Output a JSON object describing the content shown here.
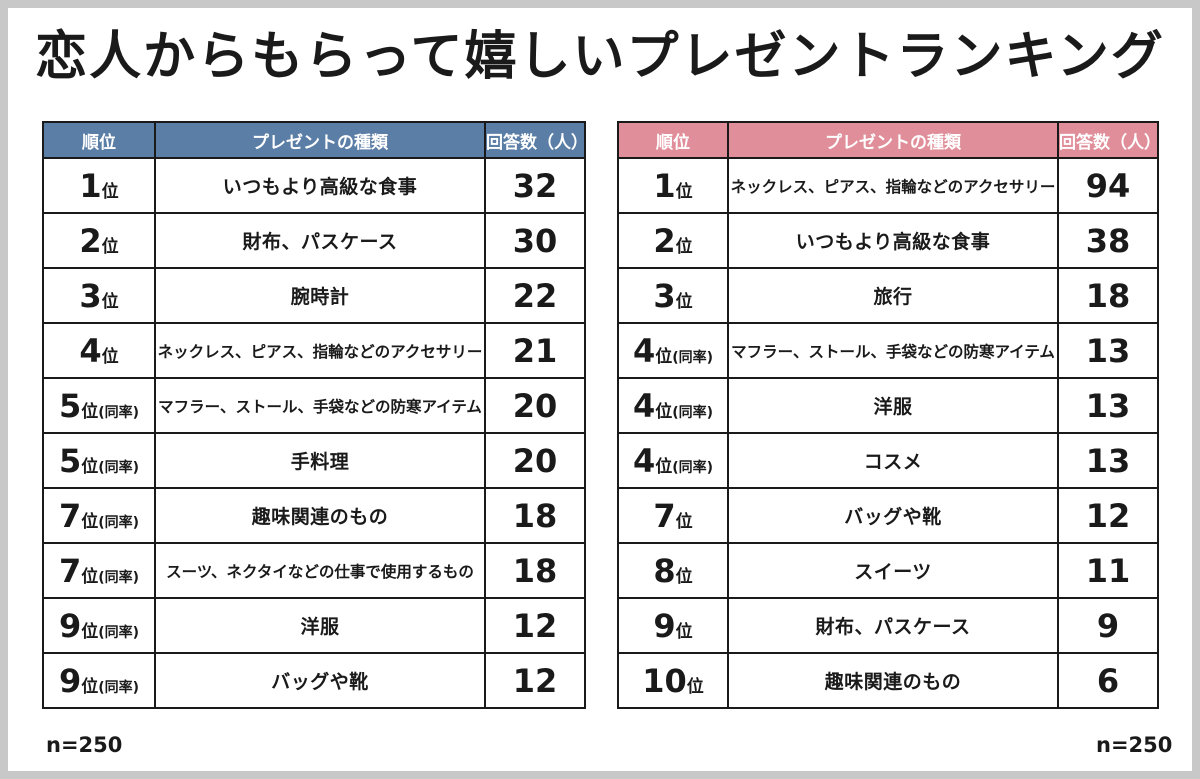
{
  "title": "恋人からもらって嬉しいプレゼントランキング",
  "left_table": {
    "headers": {
      "rank": "順位",
      "present": "プレゼントの種類",
      "count": "回答数（人）"
    },
    "accent_color": "#5b7ea6",
    "rows": [
      {
        "rank": "1",
        "suffix": "位",
        "tie": "",
        "present": "いつもより高級な食事",
        "count": "32"
      },
      {
        "rank": "2",
        "suffix": "位",
        "tie": "",
        "present": "財布、パスケース",
        "count": "30"
      },
      {
        "rank": "3",
        "suffix": "位",
        "tie": "",
        "present": "腕時計",
        "count": "22"
      },
      {
        "rank": "4",
        "suffix": "位",
        "tie": "",
        "present": "ネックレス、ピアス、指輪などのアクセサリー",
        "count": "21"
      },
      {
        "rank": "5",
        "suffix": "位",
        "tie": "(同率)",
        "present": "マフラー、ストール、手袋などの防寒アイテム",
        "count": "20"
      },
      {
        "rank": "5",
        "suffix": "位",
        "tie": "(同率)",
        "present": "手料理",
        "count": "20"
      },
      {
        "rank": "7",
        "suffix": "位",
        "tie": "(同率)",
        "present": "趣味関連のもの",
        "count": "18"
      },
      {
        "rank": "7",
        "suffix": "位",
        "tie": "(同率)",
        "present": "スーツ、ネクタイなどの仕事で使用するもの",
        "count": "18"
      },
      {
        "rank": "9",
        "suffix": "位",
        "tie": "(同率)",
        "present": "洋服",
        "count": "12"
      },
      {
        "rank": "9",
        "suffix": "位",
        "tie": "(同率)",
        "present": "バッグや靴",
        "count": "12"
      }
    ],
    "note": "n=250"
  },
  "right_table": {
    "headers": {
      "rank": "順位",
      "present": "プレゼントの種類",
      "count": "回答数（人）"
    },
    "accent_color": "#e08f9a",
    "rows": [
      {
        "rank": "1",
        "suffix": "位",
        "tie": "",
        "present": "ネックレス、ピアス、指輪などのアクセサリー",
        "count": "94"
      },
      {
        "rank": "2",
        "suffix": "位",
        "tie": "",
        "present": "いつもより高級な食事",
        "count": "38"
      },
      {
        "rank": "3",
        "suffix": "位",
        "tie": "",
        "present": "旅行",
        "count": "18"
      },
      {
        "rank": "4",
        "suffix": "位",
        "tie": "(同率)",
        "present": "マフラー、ストール、手袋などの防寒アイテム",
        "count": "13"
      },
      {
        "rank": "4",
        "suffix": "位",
        "tie": "(同率)",
        "present": "洋服",
        "count": "13"
      },
      {
        "rank": "4",
        "suffix": "位",
        "tie": "(同率)",
        "present": "コスメ",
        "count": "13"
      },
      {
        "rank": "7",
        "suffix": "位",
        "tie": "",
        "present": "バッグや靴",
        "count": "12"
      },
      {
        "rank": "8",
        "suffix": "位",
        "tie": "",
        "present": "スイーツ",
        "count": "11"
      },
      {
        "rank": "9",
        "suffix": "位",
        "tie": "",
        "present": "財布、パスケース",
        "count": "9"
      },
      {
        "rank": "10",
        "suffix": "位",
        "tie": "",
        "present": "趣味関連のもの",
        "count": "6"
      }
    ],
    "note": "n=250"
  }
}
